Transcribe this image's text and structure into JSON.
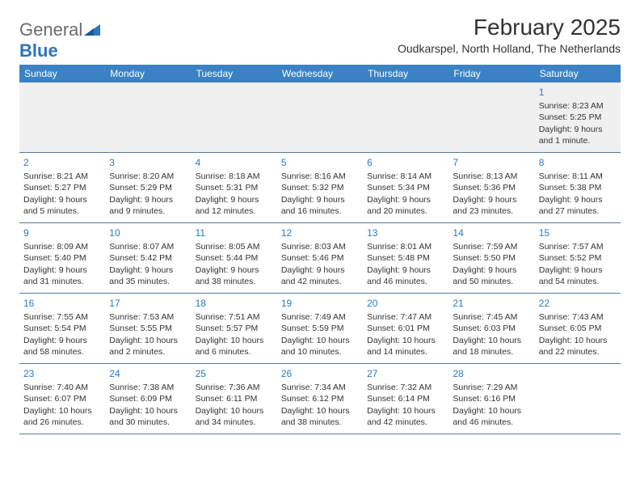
{
  "logo": {
    "text1": "General",
    "text2": "Blue"
  },
  "title": "February 2025",
  "location": "Oudkarspel, North Holland, The Netherlands",
  "colors": {
    "header_bg": "#3b82c4",
    "header_text": "#ffffff",
    "daynum": "#277cc0",
    "body_text": "#333333",
    "row_divider": "#5a7a9a",
    "first_row_bg": "#f0f0f0",
    "logo_gray": "#6b6b6b",
    "logo_blue": "#2d75bb"
  },
  "day_names": [
    "Sunday",
    "Monday",
    "Tuesday",
    "Wednesday",
    "Thursday",
    "Friday",
    "Saturday"
  ],
  "weeks": [
    [
      null,
      null,
      null,
      null,
      null,
      null,
      {
        "n": "1",
        "sr": "Sunrise: 8:23 AM",
        "ss": "Sunset: 5:25 PM",
        "d1": "Daylight: 9 hours",
        "d2": "and 1 minute."
      }
    ],
    [
      {
        "n": "2",
        "sr": "Sunrise: 8:21 AM",
        "ss": "Sunset: 5:27 PM",
        "d1": "Daylight: 9 hours",
        "d2": "and 5 minutes."
      },
      {
        "n": "3",
        "sr": "Sunrise: 8:20 AM",
        "ss": "Sunset: 5:29 PM",
        "d1": "Daylight: 9 hours",
        "d2": "and 9 minutes."
      },
      {
        "n": "4",
        "sr": "Sunrise: 8:18 AM",
        "ss": "Sunset: 5:31 PM",
        "d1": "Daylight: 9 hours",
        "d2": "and 12 minutes."
      },
      {
        "n": "5",
        "sr": "Sunrise: 8:16 AM",
        "ss": "Sunset: 5:32 PM",
        "d1": "Daylight: 9 hours",
        "d2": "and 16 minutes."
      },
      {
        "n": "6",
        "sr": "Sunrise: 8:14 AM",
        "ss": "Sunset: 5:34 PM",
        "d1": "Daylight: 9 hours",
        "d2": "and 20 minutes."
      },
      {
        "n": "7",
        "sr": "Sunrise: 8:13 AM",
        "ss": "Sunset: 5:36 PM",
        "d1": "Daylight: 9 hours",
        "d2": "and 23 minutes."
      },
      {
        "n": "8",
        "sr": "Sunrise: 8:11 AM",
        "ss": "Sunset: 5:38 PM",
        "d1": "Daylight: 9 hours",
        "d2": "and 27 minutes."
      }
    ],
    [
      {
        "n": "9",
        "sr": "Sunrise: 8:09 AM",
        "ss": "Sunset: 5:40 PM",
        "d1": "Daylight: 9 hours",
        "d2": "and 31 minutes."
      },
      {
        "n": "10",
        "sr": "Sunrise: 8:07 AM",
        "ss": "Sunset: 5:42 PM",
        "d1": "Daylight: 9 hours",
        "d2": "and 35 minutes."
      },
      {
        "n": "11",
        "sr": "Sunrise: 8:05 AM",
        "ss": "Sunset: 5:44 PM",
        "d1": "Daylight: 9 hours",
        "d2": "and 38 minutes."
      },
      {
        "n": "12",
        "sr": "Sunrise: 8:03 AM",
        "ss": "Sunset: 5:46 PM",
        "d1": "Daylight: 9 hours",
        "d2": "and 42 minutes."
      },
      {
        "n": "13",
        "sr": "Sunrise: 8:01 AM",
        "ss": "Sunset: 5:48 PM",
        "d1": "Daylight: 9 hours",
        "d2": "and 46 minutes."
      },
      {
        "n": "14",
        "sr": "Sunrise: 7:59 AM",
        "ss": "Sunset: 5:50 PM",
        "d1": "Daylight: 9 hours",
        "d2": "and 50 minutes."
      },
      {
        "n": "15",
        "sr": "Sunrise: 7:57 AM",
        "ss": "Sunset: 5:52 PM",
        "d1": "Daylight: 9 hours",
        "d2": "and 54 minutes."
      }
    ],
    [
      {
        "n": "16",
        "sr": "Sunrise: 7:55 AM",
        "ss": "Sunset: 5:54 PM",
        "d1": "Daylight: 9 hours",
        "d2": "and 58 minutes."
      },
      {
        "n": "17",
        "sr": "Sunrise: 7:53 AM",
        "ss": "Sunset: 5:55 PM",
        "d1": "Daylight: 10 hours",
        "d2": "and 2 minutes."
      },
      {
        "n": "18",
        "sr": "Sunrise: 7:51 AM",
        "ss": "Sunset: 5:57 PM",
        "d1": "Daylight: 10 hours",
        "d2": "and 6 minutes."
      },
      {
        "n": "19",
        "sr": "Sunrise: 7:49 AM",
        "ss": "Sunset: 5:59 PM",
        "d1": "Daylight: 10 hours",
        "d2": "and 10 minutes."
      },
      {
        "n": "20",
        "sr": "Sunrise: 7:47 AM",
        "ss": "Sunset: 6:01 PM",
        "d1": "Daylight: 10 hours",
        "d2": "and 14 minutes."
      },
      {
        "n": "21",
        "sr": "Sunrise: 7:45 AM",
        "ss": "Sunset: 6:03 PM",
        "d1": "Daylight: 10 hours",
        "d2": "and 18 minutes."
      },
      {
        "n": "22",
        "sr": "Sunrise: 7:43 AM",
        "ss": "Sunset: 6:05 PM",
        "d1": "Daylight: 10 hours",
        "d2": "and 22 minutes."
      }
    ],
    [
      {
        "n": "23",
        "sr": "Sunrise: 7:40 AM",
        "ss": "Sunset: 6:07 PM",
        "d1": "Daylight: 10 hours",
        "d2": "and 26 minutes."
      },
      {
        "n": "24",
        "sr": "Sunrise: 7:38 AM",
        "ss": "Sunset: 6:09 PM",
        "d1": "Daylight: 10 hours",
        "d2": "and 30 minutes."
      },
      {
        "n": "25",
        "sr": "Sunrise: 7:36 AM",
        "ss": "Sunset: 6:11 PM",
        "d1": "Daylight: 10 hours",
        "d2": "and 34 minutes."
      },
      {
        "n": "26",
        "sr": "Sunrise: 7:34 AM",
        "ss": "Sunset: 6:12 PM",
        "d1": "Daylight: 10 hours",
        "d2": "and 38 minutes."
      },
      {
        "n": "27",
        "sr": "Sunrise: 7:32 AM",
        "ss": "Sunset: 6:14 PM",
        "d1": "Daylight: 10 hours",
        "d2": "and 42 minutes."
      },
      {
        "n": "28",
        "sr": "Sunrise: 7:29 AM",
        "ss": "Sunset: 6:16 PM",
        "d1": "Daylight: 10 hours",
        "d2": "and 46 minutes."
      },
      null
    ]
  ]
}
